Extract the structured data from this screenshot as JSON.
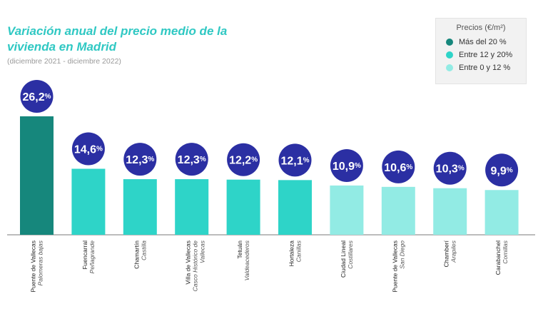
{
  "chart_data": {
    "type": "bar",
    "title": "Variación anual del precio medio de la vivienda en Madrid",
    "subtitle": "(diciembre 2021 - diciembre 2022)",
    "categories": [
      {
        "district": "Puente de Vallecas",
        "neighborhood": "Palomeras bajas"
      },
      {
        "district": "Fuencarral",
        "neighborhood": "Peñagrande"
      },
      {
        "district": "Chamartín",
        "neighborhood": "Castilla"
      },
      {
        "district": "Villa de Vallecas",
        "neighborhood": "Casco Histórico de Vallecas"
      },
      {
        "district": "Tetuán",
        "neighborhood": "Valdeacederos"
      },
      {
        "district": "Hortaleza",
        "neighborhood": "Canillas"
      },
      {
        "district": "Ciudad Lineal",
        "neighborhood": "Costillares"
      },
      {
        "district": "Puente de Vallecas",
        "neighborhood": "San Diego"
      },
      {
        "district": "Chamberí",
        "neighborhood": "Arapiles"
      },
      {
        "district": "Carabanchel",
        "neighborhood": "Comillas"
      }
    ],
    "values": [
      26.2,
      14.6,
      12.3,
      12.3,
      12.2,
      12.1,
      10.9,
      10.6,
      10.3,
      9.9
    ],
    "value_labels": [
      {
        "num": "26,2",
        "pct": "%"
      },
      {
        "num": "14,6",
        "pct": "%"
      },
      {
        "num": "12,3",
        "pct": "%"
      },
      {
        "num": "12,3",
        "pct": "%"
      },
      {
        "num": "12,2",
        "pct": "%"
      },
      {
        "num": "12,1",
        "pct": "%"
      },
      {
        "num": "10,9",
        "pct": "%"
      },
      {
        "num": "10,6",
        "pct": "%"
      },
      {
        "num": "10,3",
        "pct": "%"
      },
      {
        "num": "9,9",
        "pct": "%"
      }
    ],
    "xlabel": "",
    "ylabel": "",
    "ylim": [
      0,
      26.2
    ],
    "legend": {
      "title": "Precios (€/m²)",
      "position": "top-right",
      "items": [
        {
          "label": "Más del 20 %",
          "color": "#16877c"
        },
        {
          "label": "Entre 12 y 20%",
          "color": "#2ed4c8"
        },
        {
          "label": "Entre 0 y 12 %",
          "color": "#92ebe4"
        }
      ]
    },
    "bubble_color": "#2b2fa3"
  }
}
